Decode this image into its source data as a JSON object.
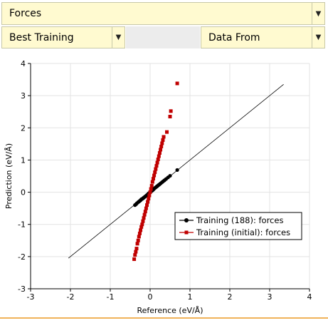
{
  "toolbar": {
    "property_select": "Forces",
    "model_select": "Best Training",
    "source_select": "Data From"
  },
  "chart_data": {
    "type": "scatter",
    "xlabel": "Reference (eV/Å)",
    "ylabel": "Prediction (eV/Å)",
    "xlim": [
      -3,
      4
    ],
    "ylim": [
      -3,
      4
    ],
    "xticks": [
      "-3",
      "-2",
      "-1",
      "0",
      "1",
      "2",
      "3",
      "4"
    ],
    "yticks": [
      "-3",
      "-2",
      "-1",
      "0",
      "1",
      "2",
      "3",
      "4"
    ],
    "grid": true,
    "legend_position": "lower-right",
    "diagonal_line": [
      [
        -2.05,
        -2.05
      ],
      [
        3.35,
        3.35
      ]
    ],
    "series": [
      {
        "name": "Training (188): forces",
        "color": "#000000",
        "marker": "circle",
        "points": [
          [
            -0.38,
            -0.4
          ],
          [
            -0.35,
            -0.37
          ],
          [
            -0.33,
            -0.34
          ],
          [
            -0.3,
            -0.31
          ],
          [
            -0.28,
            -0.29
          ],
          [
            -0.26,
            -0.27
          ],
          [
            -0.24,
            -0.25
          ],
          [
            -0.22,
            -0.22
          ],
          [
            -0.2,
            -0.21
          ],
          [
            -0.18,
            -0.19
          ],
          [
            -0.16,
            -0.17
          ],
          [
            -0.14,
            -0.15
          ],
          [
            -0.12,
            -0.13
          ],
          [
            -0.1,
            -0.11
          ],
          [
            -0.08,
            -0.09
          ],
          [
            -0.06,
            -0.07
          ],
          [
            -0.04,
            -0.04
          ],
          [
            -0.02,
            -0.02
          ],
          [
            0.0,
            0.0
          ],
          [
            0.02,
            0.02
          ],
          [
            0.04,
            0.04
          ],
          [
            0.06,
            0.06
          ],
          [
            0.08,
            0.08
          ],
          [
            0.1,
            0.11
          ],
          [
            0.12,
            0.13
          ],
          [
            0.14,
            0.15
          ],
          [
            0.16,
            0.17
          ],
          [
            0.18,
            0.19
          ],
          [
            0.2,
            0.21
          ],
          [
            0.22,
            0.23
          ],
          [
            0.24,
            0.25
          ],
          [
            0.27,
            0.28
          ],
          [
            0.3,
            0.31
          ],
          [
            0.33,
            0.34
          ],
          [
            0.36,
            0.37
          ],
          [
            0.4,
            0.41
          ],
          [
            0.45,
            0.46
          ],
          [
            0.5,
            0.51
          ],
          [
            0.68,
            0.69
          ]
        ]
      },
      {
        "name": "Training (initial): forces",
        "color": "#c00000",
        "marker": "square",
        "points": [
          [
            -0.4,
            -2.08
          ],
          [
            -0.38,
            -1.95
          ],
          [
            -0.36,
            -1.85
          ],
          [
            -0.34,
            -1.75
          ],
          [
            -0.32,
            -1.6
          ],
          [
            -0.3,
            -1.5
          ],
          [
            -0.28,
            -1.38
          ],
          [
            -0.26,
            -1.28
          ],
          [
            -0.24,
            -1.18
          ],
          [
            -0.22,
            -1.08
          ],
          [
            -0.2,
            -1.0
          ],
          [
            -0.18,
            -0.9
          ],
          [
            -0.16,
            -0.8
          ],
          [
            -0.14,
            -0.7
          ],
          [
            -0.12,
            -0.6
          ],
          [
            -0.1,
            -0.5
          ],
          [
            -0.08,
            -0.4
          ],
          [
            -0.06,
            -0.3
          ],
          [
            -0.04,
            -0.2
          ],
          [
            -0.02,
            -0.1
          ],
          [
            0.0,
            0.0
          ],
          [
            0.02,
            0.1
          ],
          [
            0.04,
            0.2
          ],
          [
            0.06,
            0.32
          ],
          [
            0.08,
            0.42
          ],
          [
            0.1,
            0.52
          ],
          [
            0.12,
            0.62
          ],
          [
            0.14,
            0.72
          ],
          [
            0.16,
            0.82
          ],
          [
            0.18,
            0.92
          ],
          [
            0.2,
            1.02
          ],
          [
            0.22,
            1.12
          ],
          [
            0.24,
            1.22
          ],
          [
            0.26,
            1.32
          ],
          [
            0.28,
            1.42
          ],
          [
            0.3,
            1.52
          ],
          [
            0.32,
            1.62
          ],
          [
            0.34,
            1.72
          ],
          [
            0.42,
            1.87
          ],
          [
            0.5,
            2.35
          ],
          [
            0.52,
            2.52
          ],
          [
            0.68,
            3.38
          ]
        ]
      }
    ]
  }
}
